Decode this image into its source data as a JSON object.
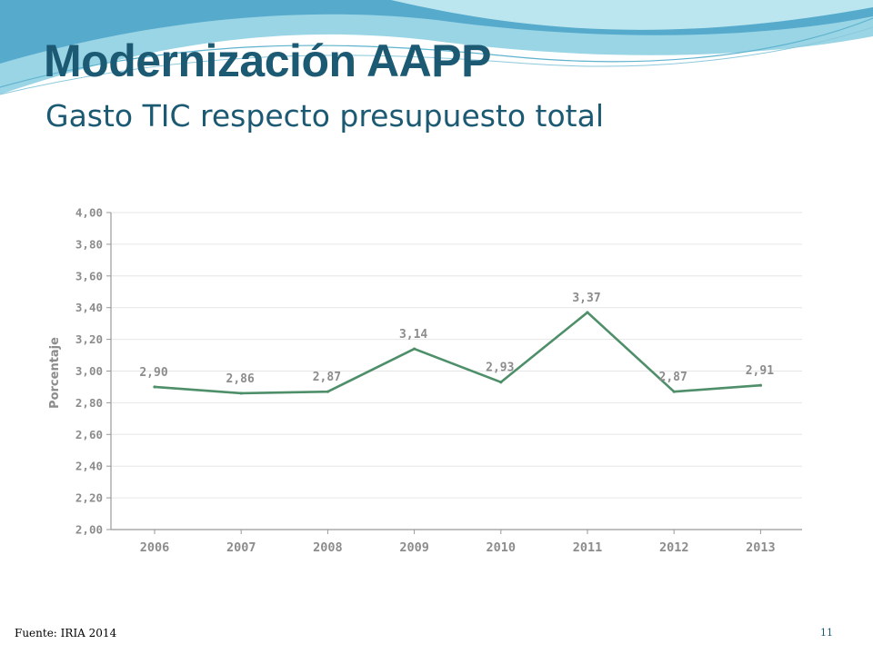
{
  "slide": {
    "title": "Modernización AAPP",
    "subtitle": "Gasto TIC respecto presupuesto total",
    "source": "Fuente: IRIA 2014",
    "page_number": "11",
    "theme_color": "#1c5a73",
    "wave_colors": [
      "#4aa3c8",
      "#8fd0e3",
      "#c7ecf3"
    ]
  },
  "chart_data": {
    "type": "line",
    "categories": [
      "2006",
      "2007",
      "2008",
      "2009",
      "2010",
      "2011",
      "2012",
      "2013"
    ],
    "series": [
      {
        "values": [
          2.9,
          2.86,
          2.87,
          3.14,
          2.93,
          3.37,
          2.87,
          2.91
        ],
        "data_labels": [
          "2,90",
          "2,86",
          "2,87",
          "3,14",
          "2,93",
          "3,37",
          "2,87",
          "2,91"
        ],
        "color": "#4e8f6a"
      }
    ],
    "ylabel": "Porcentaje",
    "ylim": [
      2.0,
      4.0
    ],
    "ytick_values": [
      2.0,
      2.2,
      2.4,
      2.6,
      2.8,
      3.0,
      3.2,
      3.4,
      3.6,
      3.8,
      4.0
    ],
    "ytick_labels": [
      "2,00",
      "2,20",
      "2,40",
      "2,60",
      "2,80",
      "3,00",
      "3,20",
      "3,40",
      "3,60",
      "3,80",
      "4,00"
    ],
    "grid": true,
    "legend": "none"
  }
}
